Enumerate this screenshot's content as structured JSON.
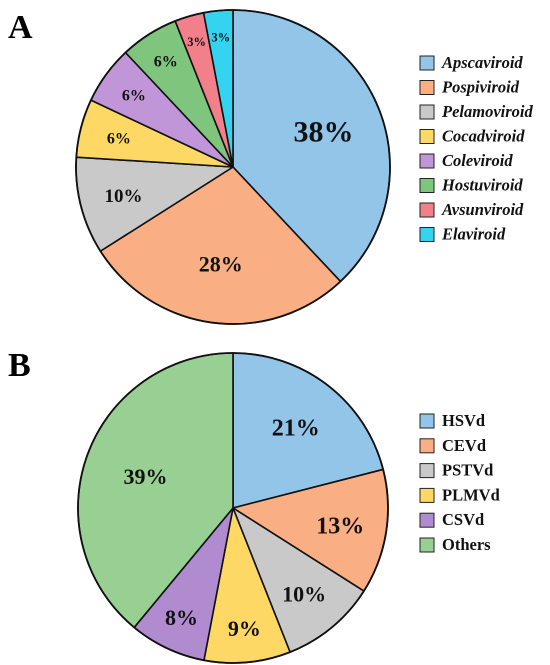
{
  "chart_data": [
    {
      "type": "pie",
      "panel": "A",
      "title": "",
      "start": "top, clockwise",
      "legend_position": "right",
      "legend_italic": true,
      "slices": [
        {
          "name": "Apscaviroid",
          "value": 38,
          "label": "38%",
          "color": "#92c5e8"
        },
        {
          "name": "Pospiviroid",
          "value": 28,
          "label": "28%",
          "color": "#f9ae84"
        },
        {
          "name": "Pelamoviroid",
          "value": 10,
          "label": "10%",
          "color": "#c9c9c9"
        },
        {
          "name": "Cocadviroid",
          "value": 6,
          "label": "6%",
          "color": "#fdd865"
        },
        {
          "name": "Coleviroid",
          "value": 6,
          "label": "6%",
          "color": "#c196d8"
        },
        {
          "name": "Hostuviroid",
          "value": 6,
          "label": "6%",
          "color": "#7fc57e"
        },
        {
          "name": "Avsunviroid",
          "value": 3,
          "label": "3%",
          "color": "#f1808b"
        },
        {
          "name": "Elaviroid",
          "value": 3,
          "label": "3%",
          "color": "#34d3f0"
        }
      ]
    },
    {
      "type": "pie",
      "panel": "B",
      "title": "",
      "start": "top, clockwise",
      "legend_position": "right",
      "legend_italic": false,
      "slices": [
        {
          "name": "HSVd",
          "value": 21,
          "label": "21%",
          "color": "#92c5e8"
        },
        {
          "name": "CEVd",
          "value": 13,
          "label": "13%",
          "color": "#f9ae84"
        },
        {
          "name": "PSTVd",
          "value": 10,
          "label": "10%",
          "color": "#c9c9c9"
        },
        {
          "name": "PLMVd",
          "value": 9,
          "label": "9%",
          "color": "#fdd865"
        },
        {
          "name": "CSVd",
          "value": 8,
          "label": "8%",
          "color": "#b08bd0"
        },
        {
          "name": "Others",
          "value": 39,
          "label": "39%",
          "color": "#98cf92"
        }
      ]
    }
  ]
}
